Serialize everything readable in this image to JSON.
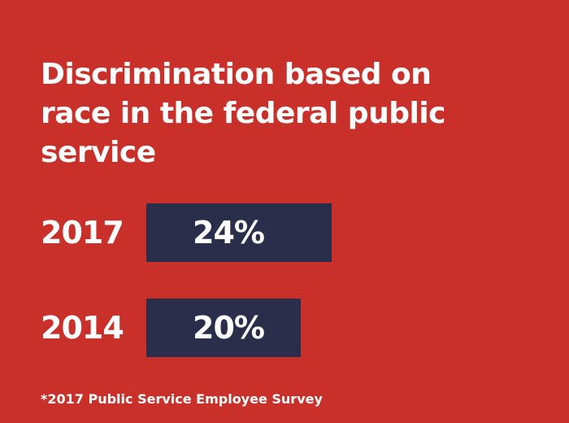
{
  "chart_data": {
    "type": "bar",
    "orientation": "horizontal",
    "title": "Discrimination based on race in the federal public service",
    "categories": [
      "2017",
      "2014"
    ],
    "values": [
      24,
      20
    ],
    "value_labels": [
      "24%",
      "20%"
    ],
    "unit": "%",
    "footnote": "*2017 Public Service Employee Survey",
    "grid": false,
    "legend": "none"
  },
  "colors": {
    "background": "#c9302a",
    "bar": "#2b2e4a",
    "text": "#ffffff"
  }
}
